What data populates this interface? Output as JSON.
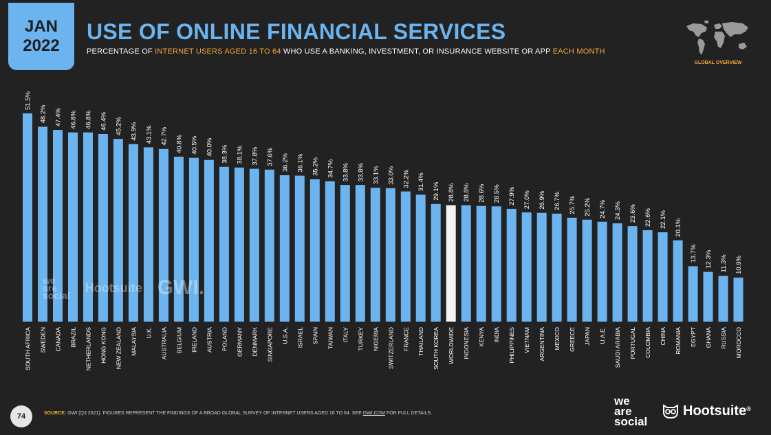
{
  "header": {
    "badge_month": "JAN",
    "badge_year": "2022",
    "title": "USE OF ONLINE FINANCIAL SERVICES",
    "subtitle_part1": "PERCENTAGE OF ",
    "subtitle_part2": "INTERNET USERS AGED  16 TO 64",
    "subtitle_part3": " WHO USE A BANKING, INVESTMENT, OR INSURANCE WEBSITE OR APP ",
    "subtitle_part4": "EACH MONTH",
    "global_label": "GLOBAL OVERVIEW"
  },
  "footer": {
    "page_number": "74",
    "source_label": "SOURCE:",
    "source_text": " GWI (Q3 2021). FIGURES REPRESENT THE FINDINGS OF A BROAD GLOBAL SURVEY OF INTERNET USERS AGED 16 TO 64. SEE ",
    "source_link": "GWI.COM",
    "source_end": " FOR FULL DETAILS.",
    "wearesocial": [
      "we",
      "are",
      "social"
    ],
    "hootsuite": "Hootsuite",
    "hootsuite_mark": "®"
  },
  "watermark": {
    "wearesocial": [
      "we",
      "are",
      "social"
    ],
    "hootsuite": "Hootsuite",
    "gwi": "GWI."
  },
  "colors": {
    "bar": "#6cb4f0",
    "highlight_bar": "#f2f2f2",
    "background": "#222222",
    "accent": "#f4a83a"
  },
  "chart_data": {
    "type": "bar",
    "categories": [
      "SOUTH AFRICA",
      "SWEDEN",
      "CANADA",
      "BRAZIL",
      "NETHERLANDS",
      "HONG KONG",
      "NEW ZEALAND",
      "MALAYSIA",
      "U.K.",
      "AUSTRALIA",
      "BELGIUM",
      "IRELAND",
      "AUSTRIA",
      "POLAND",
      "GERMANY",
      "DENMARK",
      "SINGAPORE",
      "U.S.A.",
      "ISRAEL",
      "SPAIN",
      "TAIWAN",
      "ITALY",
      "TURKEY",
      "NIGERIA",
      "SWITZERLAND",
      "FRANCE",
      "THAILAND",
      "SOUTH KOREA",
      "WORLDWIDE",
      "INDONESIA",
      "KENYA",
      "INDIA",
      "PHILIPPINES",
      "VIETNAM",
      "ARGENTINA",
      "MEXICO",
      "GREECE",
      "JAPAN",
      "U.A.E.",
      "SAUDI ARABIA",
      "PORTUGAL",
      "COLOMBIA",
      "CHINA",
      "ROMANIA",
      "EGYPT",
      "GHANA",
      "RUSSIA",
      "MOROCCO"
    ],
    "values": [
      51.5,
      48.2,
      47.4,
      46.8,
      46.8,
      46.4,
      45.2,
      43.9,
      43.1,
      42.7,
      40.8,
      40.5,
      40.0,
      38.3,
      38.1,
      37.8,
      37.6,
      36.2,
      36.1,
      35.2,
      34.7,
      33.8,
      33.8,
      33.1,
      33.0,
      32.2,
      31.4,
      29.1,
      28.8,
      28.8,
      28.6,
      28.5,
      27.9,
      27.0,
      26.9,
      26.7,
      25.7,
      25.2,
      24.7,
      24.3,
      23.6,
      22.6,
      22.1,
      20.1,
      13.7,
      12.3,
      11.3,
      10.9
    ],
    "labels": [
      "51.5%",
      "48.2%",
      "47.4%",
      "46.8%",
      "46.8%",
      "46.4%",
      "45.2%",
      "43.9%",
      "43.1%",
      "42.7%",
      "40.8%",
      "40.5%",
      "40.0%",
      "38.3%",
      "38.1%",
      "37.8%",
      "37.6%",
      "36.2%",
      "36.1%",
      "35.2%",
      "34.7%",
      "33.8%",
      "33.8%",
      "33.1%",
      "33.0%",
      "32.2%",
      "31.4%",
      "29.1%",
      "28.8%",
      "28.8%",
      "28.6%",
      "28.5%",
      "27.9%",
      "27.0%",
      "26.9%",
      "26.7%",
      "25.7%",
      "25.2%",
      "24.7%",
      "24.3%",
      "23.6%",
      "22.6%",
      "22.1%",
      "20.1%",
      "13.7%",
      "12.3%",
      "11.3%",
      "10.9%"
    ],
    "highlight": "WORLDWIDE",
    "title": "USE OF ONLINE FINANCIAL SERVICES",
    "xlabel": "",
    "ylabel": "",
    "ylim": [
      0,
      51.5
    ],
    "grid": false,
    "legend": "none"
  }
}
